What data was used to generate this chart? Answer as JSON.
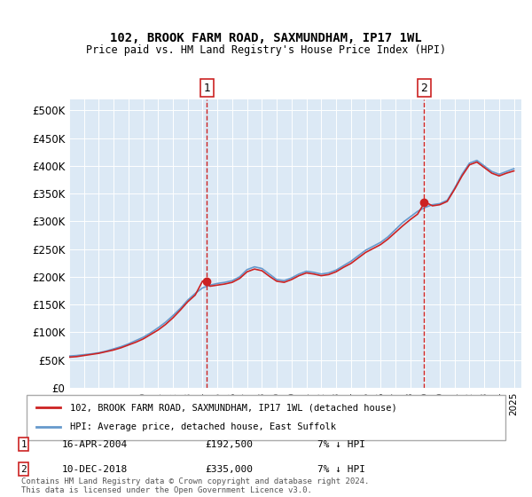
{
  "title": "102, BROOK FARM ROAD, SAXMUNDHAM, IP17 1WL",
  "subtitle": "Price paid vs. HM Land Registry's House Price Index (HPI)",
  "ylabel": "",
  "background_color": "#dce9f5",
  "plot_bg_color": "#dce9f5",
  "ylim": [
    0,
    520000
  ],
  "yticks": [
    0,
    50000,
    100000,
    150000,
    200000,
    250000,
    300000,
    350000,
    400000,
    450000,
    500000
  ],
  "ytick_labels": [
    "£0",
    "£50K",
    "£100K",
    "£150K",
    "£200K",
    "£250K",
    "£300K",
    "£350K",
    "£400K",
    "£450K",
    "£500K"
  ],
  "sale1_x": 2004.29,
  "sale1_y": 192500,
  "sale1_label": "1",
  "sale1_date": "16-APR-2004",
  "sale1_price": "£192,500",
  "sale1_note": "7% ↓ HPI",
  "sale2_x": 2018.94,
  "sale2_y": 335000,
  "sale2_label": "2",
  "sale2_date": "10-DEC-2018",
  "sale2_price": "£335,000",
  "sale2_note": "7% ↓ HPI",
  "hpi_color": "#6699cc",
  "price_color": "#cc2222",
  "vline_color": "#cc2222",
  "marker_color": "#cc2222",
  "legend_label_price": "102, BROOK FARM ROAD, SAXMUNDHAM, IP17 1WL (detached house)",
  "legend_label_hpi": "HPI: Average price, detached house, East Suffolk",
  "footnote": "Contains HM Land Registry data © Crown copyright and database right 2024.\nThis data is licensed under the Open Government Licence v3.0.",
  "xlim_start": 1995.0,
  "xlim_end": 2025.5,
  "hpi_x": [
    1995,
    1995.5,
    1996,
    1996.5,
    1997,
    1997.5,
    1998,
    1998.5,
    1999,
    1999.5,
    2000,
    2000.5,
    2001,
    2001.5,
    2002,
    2002.5,
    2003,
    2003.5,
    2004,
    2004.5,
    2005,
    2005.5,
    2006,
    2006.5,
    2007,
    2007.5,
    2008,
    2008.5,
    2009,
    2009.5,
    2010,
    2010.5,
    2011,
    2011.5,
    2012,
    2012.5,
    2013,
    2013.5,
    2014,
    2014.5,
    2015,
    2015.5,
    2016,
    2016.5,
    2017,
    2017.5,
    2018,
    2018.5,
    2019,
    2019.5,
    2020,
    2020.5,
    2021,
    2021.5,
    2022,
    2022.5,
    2023,
    2023.5,
    2024,
    2024.5,
    2025
  ],
  "hpi_y": [
    57000,
    58000,
    59500,
    61000,
    63000,
    66000,
    70000,
    74000,
    79000,
    85000,
    91000,
    99000,
    108000,
    118000,
    130000,
    143000,
    158000,
    170000,
    180000,
    185000,
    188000,
    190000,
    193000,
    200000,
    213000,
    218000,
    215000,
    205000,
    195000,
    193000,
    198000,
    205000,
    210000,
    208000,
    205000,
    207000,
    212000,
    220000,
    228000,
    238000,
    248000,
    255000,
    262000,
    272000,
    285000,
    298000,
    308000,
    318000,
    325000,
    330000,
    332000,
    338000,
    360000,
    385000,
    405000,
    410000,
    400000,
    390000,
    385000,
    390000,
    395000
  ],
  "price_x": [
    1995,
    1995.5,
    1996,
    1996.5,
    1997,
    1997.5,
    1998,
    1998.5,
    1999,
    1999.5,
    2000,
    2000.5,
    2001,
    2001.5,
    2002,
    2002.5,
    2003,
    2003.5,
    2004,
    2004.5,
    2005,
    2005.5,
    2006,
    2006.5,
    2007,
    2007.5,
    2008,
    2008.5,
    2009,
    2009.5,
    2010,
    2010.5,
    2011,
    2011.5,
    2012,
    2012.5,
    2013,
    2013.5,
    2014,
    2014.5,
    2015,
    2015.5,
    2016,
    2016.5,
    2017,
    2017.5,
    2018,
    2018.5,
    2019,
    2019.5,
    2020,
    2020.5,
    2021,
    2021.5,
    2022,
    2022.5,
    2023,
    2023.5,
    2024,
    2024.5,
    2025
  ],
  "price_y": [
    55000,
    56000,
    58000,
    60000,
    62000,
    65000,
    68000,
    72000,
    77000,
    82000,
    88000,
    96000,
    104000,
    114000,
    126000,
    140000,
    155000,
    167000,
    192500,
    183000,
    185000,
    187000,
    190000,
    197000,
    209000,
    214000,
    211000,
    201000,
    192000,
    190000,
    195000,
    202000,
    207000,
    205000,
    202000,
    204000,
    209000,
    217000,
    224000,
    234000,
    244000,
    251000,
    258000,
    268000,
    280000,
    292000,
    303000,
    313000,
    335000,
    328000,
    330000,
    336000,
    358000,
    382000,
    402000,
    407000,
    397000,
    387000,
    382000,
    387000,
    391000
  ]
}
